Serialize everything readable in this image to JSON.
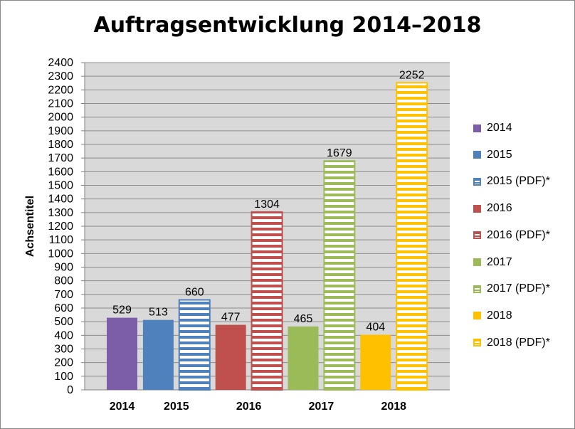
{
  "chart_data": {
    "type": "bar",
    "title": "Auftragsentwicklung 2014–2018",
    "xlabel": "",
    "ylabel": "Achsentitel",
    "ylim": [
      0,
      2400
    ],
    "ytick_step": 100,
    "grid": true,
    "legend_position": "right",
    "categories": [
      "2014",
      "2015",
      "2016",
      "2017",
      "2018"
    ],
    "series": [
      {
        "name": "2014",
        "color": "#7B5EA7",
        "pattern": "solid",
        "category": "2014",
        "value": 529
      },
      {
        "name": "2015",
        "color": "#4F81BD",
        "pattern": "solid",
        "category": "2015",
        "value": 513
      },
      {
        "name": "2015 (PDF)*",
        "color": "#4F81BD",
        "pattern": "horizontal-stripes",
        "category": "2015",
        "value": 660
      },
      {
        "name": "2016",
        "color": "#C0504D",
        "pattern": "solid",
        "category": "2016",
        "value": 477
      },
      {
        "name": "2016 (PDF)*",
        "color": "#C0504D",
        "pattern": "horizontal-stripes",
        "category": "2016",
        "value": 1304
      },
      {
        "name": "2017",
        "color": "#9BBB59",
        "pattern": "solid",
        "category": "2017",
        "value": 465
      },
      {
        "name": "2017 (PDF)*",
        "color": "#9BBB59",
        "pattern": "horizontal-stripes",
        "category": "2017",
        "value": 1679
      },
      {
        "name": "2018",
        "color": "#FFC000",
        "pattern": "solid",
        "category": "2018",
        "value": 404
      },
      {
        "name": "2018 (PDF)*",
        "color": "#FFC000",
        "pattern": "horizontal-stripes",
        "category": "2018",
        "value": 2252
      }
    ]
  }
}
